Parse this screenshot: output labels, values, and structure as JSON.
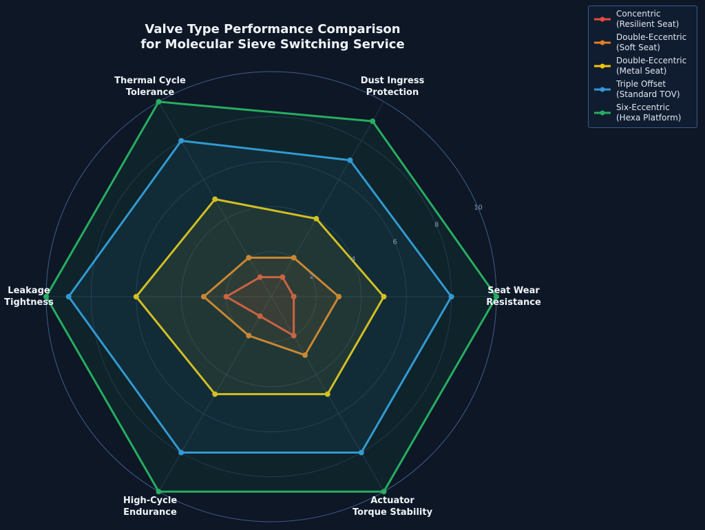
{
  "chart_data": {
    "type": "radar",
    "title": "Valve Type Performance Comparison\nfor Molecular Sieve Switching Service",
    "categories": [
      "Seat Wear\nResistance",
      "Dust Ingress\nProtection",
      "Thermal Cycle\nTolerance",
      "Leakage\nTightness",
      "High-Cycle\nEndurance",
      "Actuator\nTorque Stability"
    ],
    "ylim": [
      0,
      10
    ],
    "yticks": [
      2,
      4,
      6,
      8,
      10
    ],
    "grid": true,
    "legend": "upper right",
    "series": [
      {
        "name": "Concentric\n(Resilient Seat)",
        "color": "#e74c3c",
        "values": [
          1,
          1,
          1,
          2,
          1,
          2
        ]
      },
      {
        "name": "Double-Eccentric\n(Soft Seat)",
        "color": "#e67e22",
        "values": [
          3,
          2,
          2,
          3,
          2,
          3
        ]
      },
      {
        "name": "Double-Eccentric\n(Metal Seat)",
        "color": "#f1c40f",
        "values": [
          5,
          4,
          5,
          6,
          5,
          5
        ]
      },
      {
        "name": "Triple Offset\n(Standard TOV)",
        "color": "#3498db",
        "values": [
          8,
          7,
          8,
          9,
          8,
          8
        ]
      },
      {
        "name": "Six-Eccentric\n(Hexa Platform)",
        "color": "#27ae60",
        "values": [
          10,
          9,
          10,
          10,
          10,
          10
        ]
      }
    ]
  }
}
